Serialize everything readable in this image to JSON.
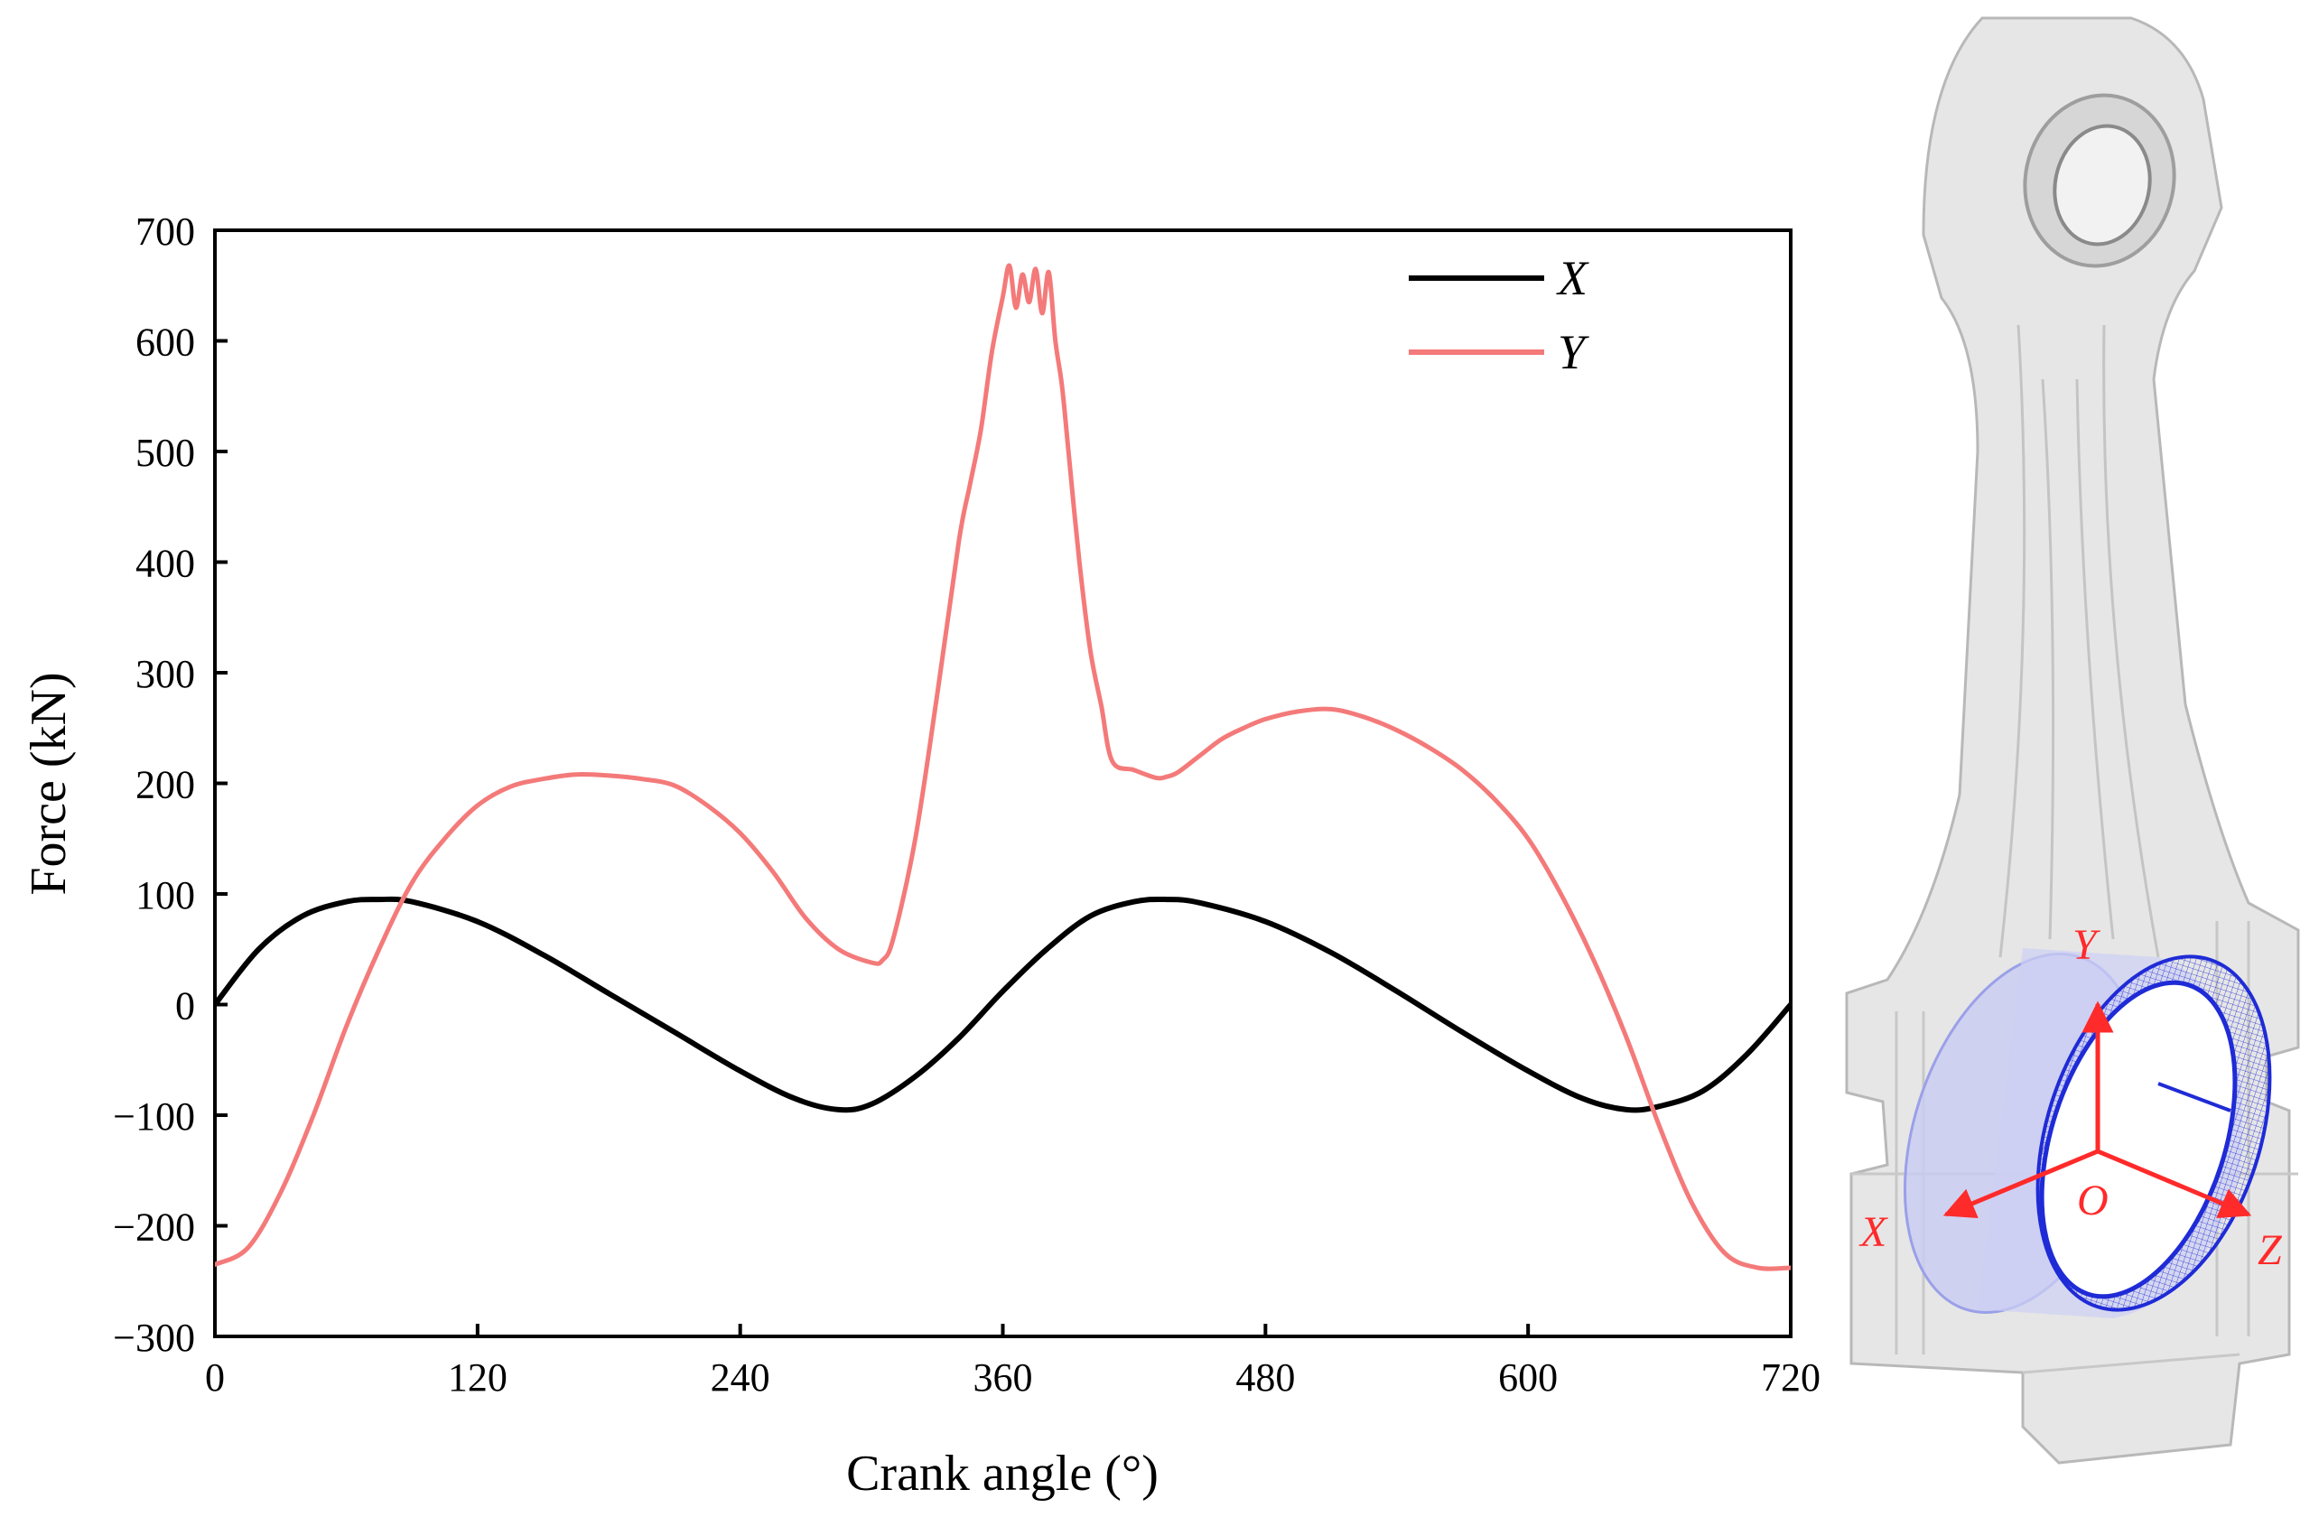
{
  "chart_data": {
    "type": "line",
    "xlabel": "Crank angle (°)",
    "ylabel": "Force (kN)",
    "xlim": [
      0,
      720
    ],
    "ylim": [
      -300,
      700
    ],
    "xticks": [
      0,
      120,
      240,
      360,
      480,
      600,
      720
    ],
    "yticks": [
      -300,
      -200,
      -100,
      0,
      100,
      200,
      300,
      400,
      500,
      600,
      700
    ],
    "xtick_labels": [
      "0",
      "120",
      "240",
      "360",
      "480",
      "600",
      "720"
    ],
    "ytick_labels": [
      "−300",
      "−200",
      "−100",
      "0",
      "100",
      "200",
      "300",
      "400",
      "500",
      "600",
      "700"
    ],
    "grid": false,
    "legend_position": "top-right",
    "series": [
      {
        "name": "X",
        "color": "#000000",
        "x": [
          0,
          20,
          40,
          60,
          75,
          90,
          120,
          150,
          180,
          210,
          240,
          265,
          285,
          300,
          320,
          340,
          360,
          380,
          400,
          420,
          435,
          450,
          480,
          510,
          540,
          570,
          600,
          625,
          645,
          660,
          680,
          700,
          720
        ],
        "y": [
          0,
          50,
          80,
          93,
          95,
          93,
          75,
          45,
          10,
          -25,
          -60,
          -85,
          -95,
          -90,
          -65,
          -30,
          12,
          50,
          80,
          93,
          95,
          92,
          75,
          47,
          12,
          -25,
          -60,
          -85,
          -95,
          -92,
          -78,
          -45,
          0
        ]
      },
      {
        "name": "Y",
        "color": "#f47a7a",
        "x": [
          0,
          15,
          30,
          45,
          60,
          75,
          90,
          105,
          120,
          135,
          150,
          165,
          180,
          195,
          210,
          225,
          240,
          255,
          270,
          285,
          300,
          305,
          310,
          320,
          330,
          340,
          345,
          350,
          355,
          360,
          363,
          366,
          369,
          372,
          375,
          378,
          381,
          384,
          387,
          390,
          395,
          400,
          405,
          410,
          420,
          430,
          435,
          440,
          450,
          460,
          470,
          480,
          495,
          510,
          525,
          540,
          555,
          570,
          585,
          600,
          615,
          630,
          645,
          660,
          675,
          690,
          705,
          720
        ],
        "y": [
          -235,
          -220,
          -170,
          -100,
          -20,
          50,
          110,
          150,
          180,
          197,
          204,
          208,
          207,
          204,
          198,
          180,
          155,
          120,
          78,
          50,
          38,
          40,
          60,
          150,
          280,
          420,
          470,
          520,
          590,
          640,
          668,
          630,
          660,
          635,
          665,
          625,
          662,
          600,
          560,
          500,
          400,
          320,
          270,
          220,
          212,
          205,
          206,
          210,
          225,
          240,
          250,
          258,
          265,
          267,
          260,
          248,
          232,
          212,
          185,
          150,
          100,
          40,
          -30,
          -110,
          -180,
          -225,
          -238,
          -238
        ]
      }
    ]
  },
  "legend": {
    "items": [
      "X",
      "Y"
    ]
  },
  "model_illustration": {
    "axis_labels": {
      "x": "X",
      "y": "Y",
      "z": "Z",
      "origin": "O"
    },
    "axis_color": "#ff2a2a",
    "bearing_color": "#1f2bd6"
  }
}
